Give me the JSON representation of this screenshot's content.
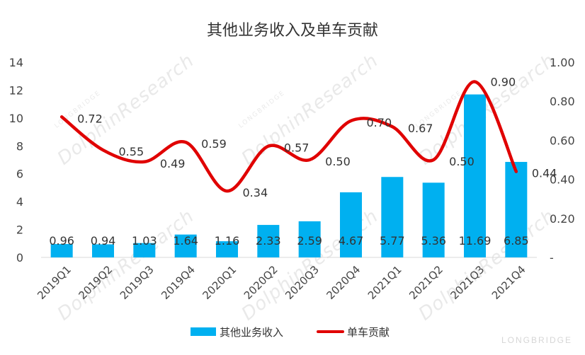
{
  "chart_data": {
    "type": "bar+line",
    "title": "其他业务收入及单车贡献",
    "categories": [
      "2019Q1",
      "2019Q2",
      "2019Q3",
      "2019Q4",
      "2020Q1",
      "2020Q2",
      "2020Q3",
      "2020Q4",
      "2021Q1",
      "2021Q2",
      "2021Q3",
      "2021Q4"
    ],
    "series": [
      {
        "name": "其他业务收入",
        "type": "bar",
        "axis": "left",
        "color": "#00b0f0",
        "values": [
          0.96,
          0.94,
          1.03,
          1.64,
          1.16,
          2.33,
          2.59,
          4.67,
          5.77,
          5.36,
          11.69,
          6.85
        ]
      },
      {
        "name": "单车贡献",
        "type": "line",
        "axis": "right",
        "color": "#e00000",
        "values": [
          0.72,
          0.55,
          0.49,
          0.59,
          0.34,
          0.57,
          0.5,
          0.7,
          0.67,
          0.5,
          0.9,
          0.44
        ]
      }
    ],
    "y_left": {
      "ylim": [
        0,
        14
      ],
      "ticks": [
        "0",
        "2",
        "4",
        "6",
        "8",
        "10",
        "12",
        "14"
      ]
    },
    "y_right": {
      "ylim": [
        0,
        1.0
      ],
      "ticks": [
        "-",
        "0.20",
        "0.40",
        "0.60",
        "0.80",
        "1.00"
      ]
    },
    "bar_labels": [
      "0.96",
      "0.94",
      "1.03",
      "1.64",
      "1.16",
      "2.33",
      "2.59",
      "4.67",
      "5.77",
      "5.36",
      "11.69",
      "6.85"
    ],
    "line_labels": [
      "0.72",
      "0.55",
      "0.49",
      "0.59",
      "0.34",
      "0.57",
      "0.50",
      "0.70",
      "0.67",
      "0.50",
      "0.90",
      "0.44"
    ],
    "legend": {
      "placement": "bottom-center"
    },
    "grid": false
  },
  "watermark": {
    "name": "DolphinResearch",
    "small": "LONGBRIDGE"
  },
  "brand": "LONGBRIDGE"
}
